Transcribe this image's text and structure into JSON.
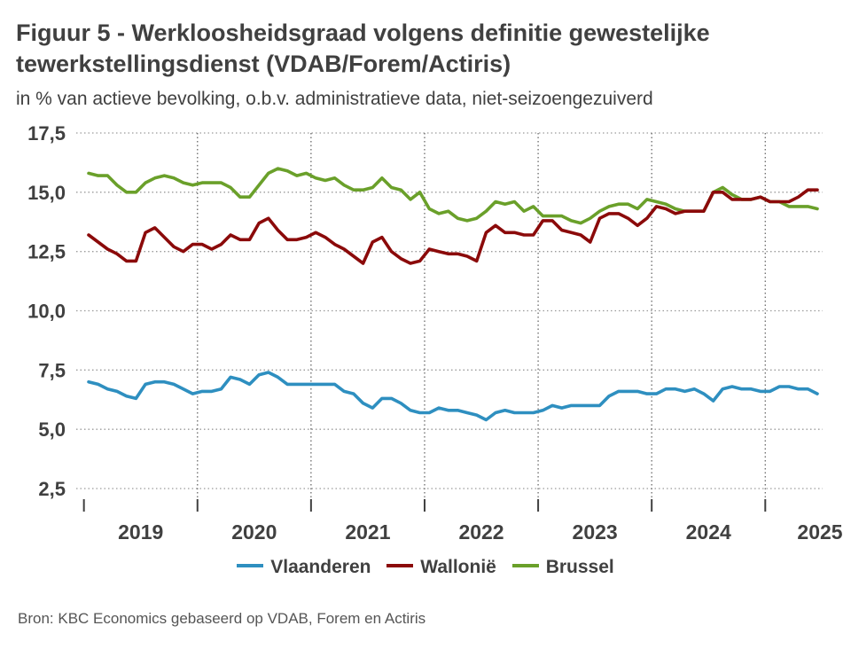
{
  "title": "Figuur 5 - Werkloosheidsgraad volgens definitie gewestelijke tewerkstellingsdienst (VDAB/Forem/Actiris)",
  "subtitle": "in % van actieve bevolking, o.b.v. administratieve data, niet-seizoengezuiverd",
  "source": "Bron: KBC Economics gebaseerd op VDAB, Forem en Actiris",
  "legend": [
    {
      "name": "Vlaanderen",
      "color": "#2e8fc0"
    },
    {
      "name": "Wallonië",
      "color": "#8b0a0a"
    },
    {
      "name": "Brussel",
      "color": "#6aa02a"
    }
  ],
  "chart_data": {
    "type": "line",
    "ylim": [
      2.5,
      17.5
    ],
    "yticks": [
      "2,5",
      "5,0",
      "7,5",
      "10,0",
      "12,5",
      "15,0",
      "17,5"
    ],
    "ytick_values": [
      2.5,
      5.0,
      7.5,
      10.0,
      12.5,
      15.0,
      17.5
    ],
    "year_labels": [
      "2019",
      "2020",
      "2021",
      "2022",
      "2023",
      "2024",
      "2025"
    ],
    "x_start": "2019-01",
    "x_end": "2025-05",
    "grid": "horizontal dotted; dotted vertical separators at year boundaries",
    "legend_position": "bottom",
    "series": [
      {
        "name": "Vlaanderen",
        "color": "#2e8fc0",
        "values": [
          7.0,
          6.9,
          6.7,
          6.6,
          6.4,
          6.3,
          6.9,
          7.0,
          7.0,
          6.9,
          6.7,
          6.5,
          6.6,
          6.6,
          6.7,
          7.2,
          7.1,
          6.9,
          7.3,
          7.4,
          7.2,
          6.9,
          6.9,
          6.9,
          6.9,
          6.9,
          6.9,
          6.6,
          6.5,
          6.1,
          5.9,
          6.3,
          6.3,
          6.1,
          5.8,
          5.7,
          5.7,
          5.9,
          5.8,
          5.8,
          5.7,
          5.6,
          5.4,
          5.7,
          5.8,
          5.7,
          5.7,
          5.7,
          5.8,
          6.0,
          5.9,
          6.0,
          6.0,
          6.0,
          6.0,
          6.4,
          6.6,
          6.6,
          6.6,
          6.5,
          6.5,
          6.7,
          6.7,
          6.6,
          6.7,
          6.5,
          6.2,
          6.7,
          6.8,
          6.7,
          6.7,
          6.6,
          6.6,
          6.8,
          6.8,
          6.7,
          6.7,
          6.5
        ]
      },
      {
        "name": "Wallonië",
        "color": "#8b0a0a",
        "values": [
          13.2,
          12.9,
          12.6,
          12.4,
          12.1,
          12.1,
          13.3,
          13.5,
          13.1,
          12.7,
          12.5,
          12.8,
          12.8,
          12.6,
          12.8,
          13.2,
          13.0,
          13.0,
          13.7,
          13.9,
          13.4,
          13.0,
          13.0,
          13.1,
          13.3,
          13.1,
          12.8,
          12.6,
          12.3,
          12.0,
          12.9,
          13.1,
          12.5,
          12.2,
          12.0,
          12.1,
          12.6,
          12.5,
          12.4,
          12.4,
          12.3,
          12.1,
          13.3,
          13.6,
          13.3,
          13.3,
          13.2,
          13.2,
          13.8,
          13.8,
          13.4,
          13.3,
          13.2,
          12.9,
          13.9,
          14.1,
          14.1,
          13.9,
          13.6,
          13.9,
          14.4,
          14.3,
          14.1,
          14.2,
          14.2,
          14.2,
          15.0,
          15.0,
          14.7,
          14.7,
          14.7,
          14.8,
          14.6,
          14.6,
          14.6,
          14.8,
          15.1,
          15.1
        ]
      },
      {
        "name": "Brussel",
        "color": "#6aa02a",
        "values": [
          15.8,
          15.7,
          15.7,
          15.3,
          15.0,
          15.0,
          15.4,
          15.6,
          15.7,
          15.6,
          15.4,
          15.3,
          15.4,
          15.4,
          15.4,
          15.2,
          14.8,
          14.8,
          15.3,
          15.8,
          16.0,
          15.9,
          15.7,
          15.8,
          15.6,
          15.5,
          15.6,
          15.3,
          15.1,
          15.1,
          15.2,
          15.6,
          15.2,
          15.1,
          14.7,
          15.0,
          14.3,
          14.1,
          14.2,
          13.9,
          13.8,
          13.9,
          14.2,
          14.6,
          14.5,
          14.6,
          14.2,
          14.4,
          14.0,
          14.0,
          14.0,
          13.8,
          13.7,
          13.9,
          14.2,
          14.4,
          14.5,
          14.5,
          14.3,
          14.7,
          14.6,
          14.5,
          14.3,
          14.2,
          14.2,
          14.2,
          15.0,
          15.2,
          14.9,
          14.7,
          14.7,
          14.8,
          14.6,
          14.6,
          14.4,
          14.4,
          14.4,
          14.3
        ]
      }
    ]
  }
}
